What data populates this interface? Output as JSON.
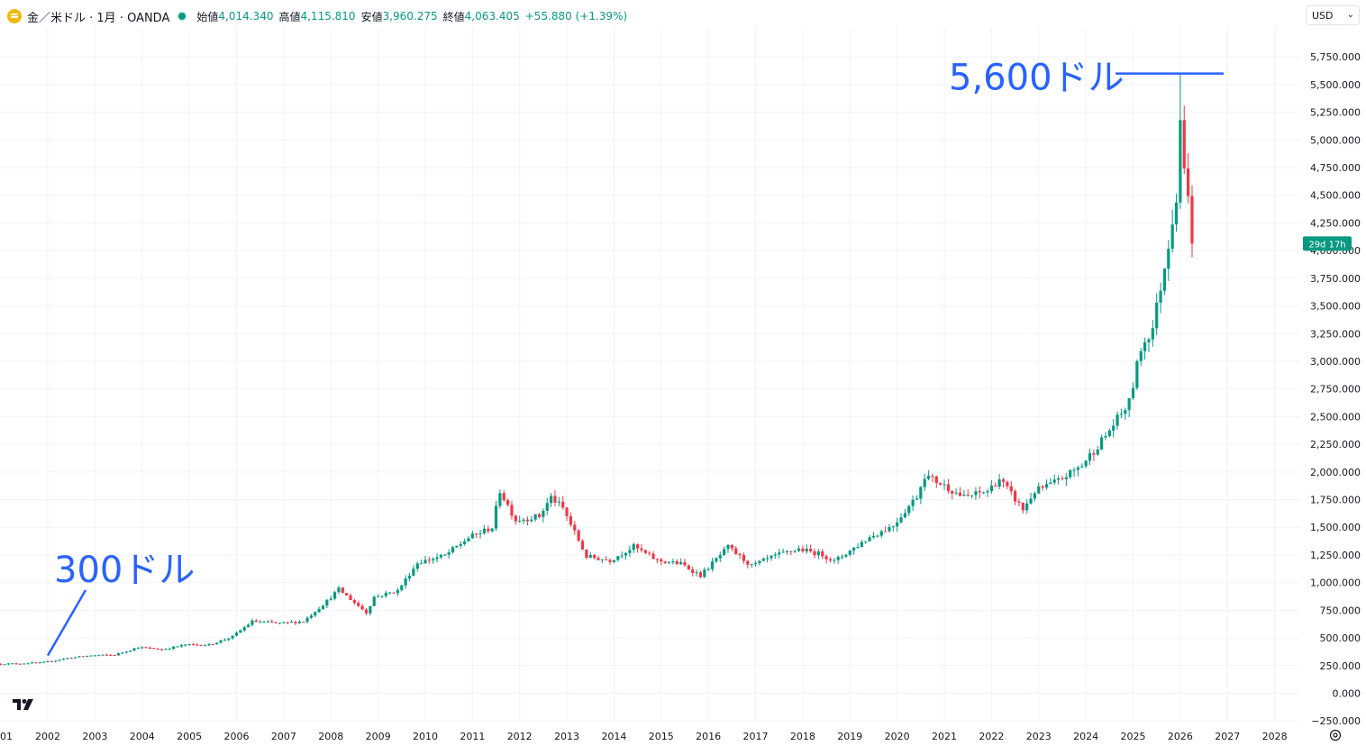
{
  "legend": {
    "title": "金／米ドル · 1月 · OANDA",
    "open_label": "始値",
    "open": "4,014.340",
    "high_label": "高値",
    "high": "4,115.810",
    "low_label": "安値",
    "low": "3,960.275",
    "close_label": "終値",
    "close": "4,063.405",
    "change": "+55.880 (+1.39%)"
  },
  "currency_selector": {
    "value": "USD"
  },
  "countdown_label": "29d 17h",
  "annotations": {
    "high_note": "5,600ドル",
    "low_note": "300ドル"
  },
  "icons": {
    "logo": "tradingview-logo",
    "settings": "settings-icon",
    "symbol": "gold-coin-icon"
  },
  "colors": {
    "up": "#089981",
    "down": "#f23645",
    "annotation": "#2962ff",
    "grid": "#f0f3fa"
  },
  "chart_data": {
    "type": "candlestick",
    "interval": "1 month",
    "symbol": "XAUUSD",
    "x_ticks": [
      "01",
      "2002",
      "2003",
      "2004",
      "2005",
      "2006",
      "2007",
      "2008",
      "2009",
      "2010",
      "2011",
      "2012",
      "2013",
      "2014",
      "2015",
      "2016",
      "2017",
      "2018",
      "2019",
      "2020",
      "2021",
      "2022",
      "2023",
      "2024",
      "2025",
      "2026",
      "2027",
      "2028"
    ],
    "y_ticks": [
      "−250.000",
      "0.000",
      "250.000",
      "500.000",
      "750.000",
      "1,000.000",
      "1,250.000",
      "1,500.000",
      "1,750.000",
      "2,000.000",
      "2,250.000",
      "2,500.000",
      "2,750.000",
      "3,000.000",
      "3,250.000",
      "3,500.000",
      "3,750.000",
      "4,000.000",
      "4,250.000",
      "4,500.000",
      "4,750.000",
      "5,000.000",
      "5,250.000",
      "5,500.000",
      "5,750.000"
    ],
    "ylim": [
      -250,
      5800
    ],
    "price_series": [
      [
        "2001-01",
        265
      ],
      [
        "2001-06",
        270
      ],
      [
        "2001-12",
        278
      ],
      [
        "2002-06",
        318
      ],
      [
        "2002-12",
        342
      ],
      [
        "2003-06",
        346
      ],
      [
        "2003-12",
        416
      ],
      [
        "2004-06",
        395
      ],
      [
        "2004-12",
        438
      ],
      [
        "2005-06",
        437
      ],
      [
        "2005-12",
        513
      ],
      [
        "2006-05",
        650
      ],
      [
        "2006-12",
        632
      ],
      [
        "2007-06",
        650
      ],
      [
        "2007-12",
        834
      ],
      [
        "2008-03",
        940
      ],
      [
        "2008-10",
        730
      ],
      [
        "2008-12",
        870
      ],
      [
        "2009-06",
        927
      ],
      [
        "2009-11",
        1180
      ],
      [
        "2010-06",
        1245
      ],
      [
        "2010-12",
        1405
      ],
      [
        "2011-06",
        1500
      ],
      [
        "2011-08",
        1830
      ],
      [
        "2011-12",
        1565
      ],
      [
        "2012-06",
        1600
      ],
      [
        "2012-09",
        1772
      ],
      [
        "2012-12",
        1670
      ],
      [
        "2013-06",
        1235
      ],
      [
        "2013-12",
        1202
      ],
      [
        "2014-06",
        1325
      ],
      [
        "2014-12",
        1200
      ],
      [
        "2015-06",
        1170
      ],
      [
        "2015-11",
        1065
      ],
      [
        "2016-06",
        1320
      ],
      [
        "2016-12",
        1150
      ],
      [
        "2017-06",
        1242
      ],
      [
        "2017-12",
        1303
      ],
      [
        "2018-06",
        1253
      ],
      [
        "2018-09",
        1192
      ],
      [
        "2019-06",
        1410
      ],
      [
        "2019-12",
        1517
      ],
      [
        "2020-06",
        1780
      ],
      [
        "2020-08",
        1970
      ],
      [
        "2020-12",
        1898
      ],
      [
        "2021-06",
        1770
      ],
      [
        "2021-12",
        1829
      ],
      [
        "2022-03",
        1937
      ],
      [
        "2022-09",
        1660
      ],
      [
        "2022-12",
        1824
      ],
      [
        "2023-06",
        1919
      ],
      [
        "2023-12",
        2062
      ],
      [
        "2024-06",
        2326
      ],
      [
        "2024-12",
        2625
      ],
      [
        "2025-03",
        3120
      ],
      [
        "2025-06",
        3303
      ],
      [
        "2025-09",
        3858
      ],
      [
        "2025-12",
        4500
      ],
      [
        "2026-01",
        5200
      ],
      [
        "2026-02",
        4700
      ],
      [
        "2026-03",
        4550
      ],
      [
        "2026-04",
        4063
      ]
    ],
    "last_close": 4063.405,
    "high_marker": 5600,
    "low_marker": 300,
    "grid": true
  }
}
